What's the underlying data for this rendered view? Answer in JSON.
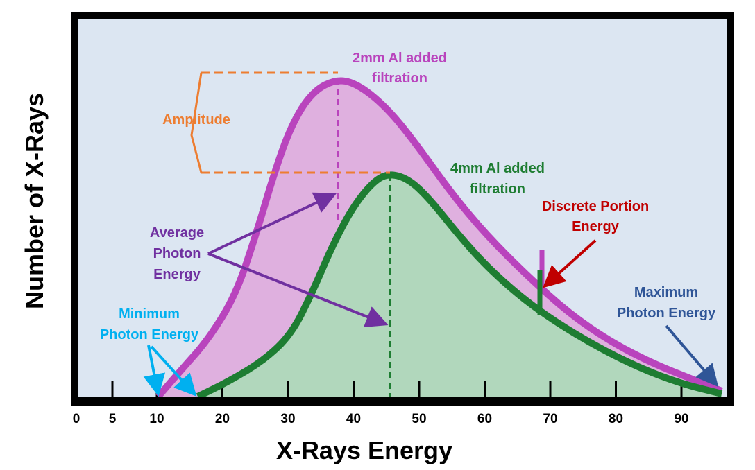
{
  "y_axis_label": "Number of X-Rays",
  "x_axis_label": "X-Rays Energy",
  "x_ticks": [
    "0",
    "5",
    "10",
    "20",
    "30",
    "40",
    "50",
    "60",
    "70",
    "80",
    "90"
  ],
  "labels": {
    "filtration_2mm": [
      "2mm Al added",
      "filtration"
    ],
    "filtration_4mm": [
      "4mm Al added",
      "filtration"
    ],
    "amplitude": "Amplitude",
    "average": [
      "Average",
      "Photon",
      "Energy"
    ],
    "minimum": [
      "Minimum",
      "Photon Energy"
    ],
    "discrete": [
      "Discrete Portion",
      "Energy"
    ],
    "maximum": [
      "Maximum",
      "Photon Energy"
    ]
  },
  "colors": {
    "background": "#dce6f2",
    "filtration_2mm": "#b944bd",
    "filtration_2mm_fill": "#dfb0df",
    "filtration_4mm": "#1e7d32",
    "filtration_4mm_fill": "#b1d7bc",
    "amplitude": "#ed7d31",
    "average": "#7030a0",
    "minimum": "#00b0f0",
    "discrete": "#c00000",
    "maximum": "#2f5597"
  }
}
